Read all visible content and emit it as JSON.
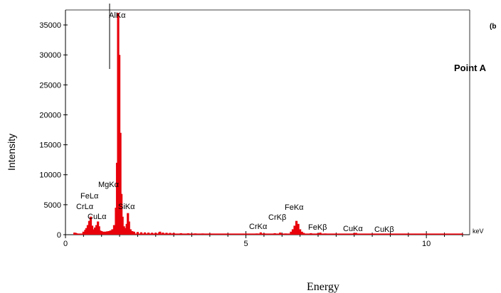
{
  "chart_data": {
    "type": "bar",
    "panel_label": "(b",
    "annotation": "Point A",
    "xlabel": "Energy",
    "ylabel": "Intensity",
    "x_unit": "keV",
    "xlim": [
      0,
      11.2
    ],
    "ylim": [
      0,
      37500
    ],
    "x_ticks": [
      0,
      5,
      10
    ],
    "y_ticks": [
      0,
      5000,
      10000,
      15000,
      20000,
      25000,
      30000,
      35000
    ],
    "grid": false,
    "legend": "none",
    "bar_color": "#e8000b",
    "spectrum": {
      "x": [
        0.25,
        0.28,
        0.3,
        0.5,
        0.55,
        0.58,
        0.62,
        0.66,
        0.7,
        0.74,
        0.78,
        0.82,
        0.86,
        0.9,
        0.93,
        0.96,
        1.0,
        1.05,
        1.1,
        1.15,
        1.2,
        1.25,
        1.3,
        1.35,
        1.4,
        1.43,
        1.46,
        1.49,
        1.52,
        1.55,
        1.58,
        1.62,
        1.66,
        1.7,
        1.73,
        1.76,
        1.8,
        1.85,
        1.9,
        2.0,
        2.1,
        2.2,
        2.3,
        2.4,
        2.5,
        2.6,
        2.62,
        2.7,
        2.8,
        2.9,
        3.0,
        3.2,
        3.4,
        3.6,
        3.8,
        4.0,
        4.5,
        5.0,
        5.3,
        5.41,
        5.5,
        5.8,
        5.95,
        6.1,
        6.25,
        6.3,
        6.35,
        6.4,
        6.45,
        6.5,
        6.55,
        6.6,
        6.8,
        7.0,
        7.06,
        7.2,
        7.5,
        8.0,
        8.05,
        8.5,
        8.9,
        9.5,
        10.0,
        10.5,
        11.0
      ],
      "y": [
        350,
        300,
        250,
        500,
        800,
        1100,
        1600,
        2300,
        3000,
        1500,
        900,
        1200,
        1600,
        2200,
        1400,
        700,
        600,
        500,
        500,
        550,
        600,
        700,
        900,
        1600,
        4500,
        12000,
        37000,
        30000,
        17000,
        6800,
        3000,
        1400,
        1100,
        1800,
        3600,
        2200,
        900,
        600,
        500,
        450,
        400,
        380,
        350,
        330,
        320,
        400,
        500,
        350,
        320,
        300,
        280,
        250,
        230,
        210,
        200,
        190,
        170,
        160,
        200,
        380,
        220,
        250,
        350,
        200,
        500,
        900,
        1500,
        2300,
        1800,
        900,
        500,
        300,
        250,
        230,
        350,
        200,
        180,
        250,
        300,
        150,
        140,
        120,
        110,
        100,
        100
      ]
    },
    "peak_labels": [
      "AlKα",
      "MgKα",
      "FeLα",
      "CrLα",
      "CuLα",
      "SiKα",
      "CrKα",
      "CrKβ",
      "FeKα",
      "FeKβ",
      "CuKα",
      "CuKβ"
    ]
  }
}
